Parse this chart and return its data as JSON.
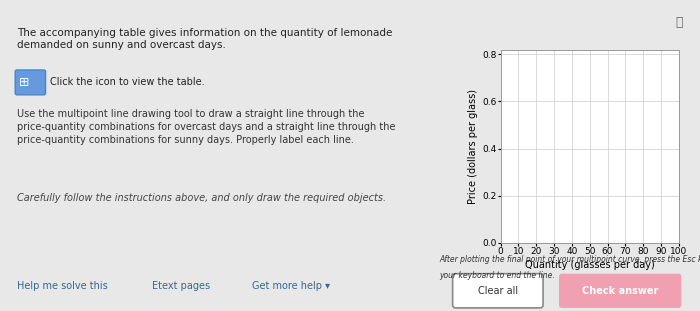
{
  "left_panel_bg": "#e8e8e8",
  "right_panel_bg": "#f5f5f0",
  "title_text": "The accompanying table gives information on the quantity of lemonade\ndemanded on sunny and overcast days.",
  "icon_text": "Click the icon to view the table.",
  "body_text1": "Use the multipoint line drawing tool to draw a straight line through the\nprice-quantity combinations for overcast days and a straight line through the\nprice-quantity combinations for sunny days. Properly label each line.",
  "body_text2": "Carefully follow the instructions above, and only draw the required objects.",
  "xlabel": "Quantity (glasses per day)",
  "ylabel": "Price (dollars per glass)",
  "xmin": 0,
  "xmax": 100,
  "ymin": 0.0,
  "ymax": 0.8,
  "xticks": [
    0,
    10,
    20,
    30,
    40,
    50,
    60,
    70,
    80,
    90,
    100
  ],
  "yticks": [
    0.0,
    0.2,
    0.4,
    0.6,
    0.8
  ],
  "grid_color": "#cccccc",
  "bottom_text1": "After plotting the final point of your multipoint curve, press the Esc key on",
  "bottom_text2": "your keyboard to end the line.",
  "button1_text": "Clear all",
  "button2_text": "Check answer",
  "button2_color": "#f0a0b0",
  "footer_left": [
    "Help me solve this",
    "Etext pages",
    "Get more help ▾"
  ],
  "title_fontsize": 7.5,
  "body_fontsize": 7,
  "axis_fontsize": 7,
  "tick_fontsize": 6.5
}
